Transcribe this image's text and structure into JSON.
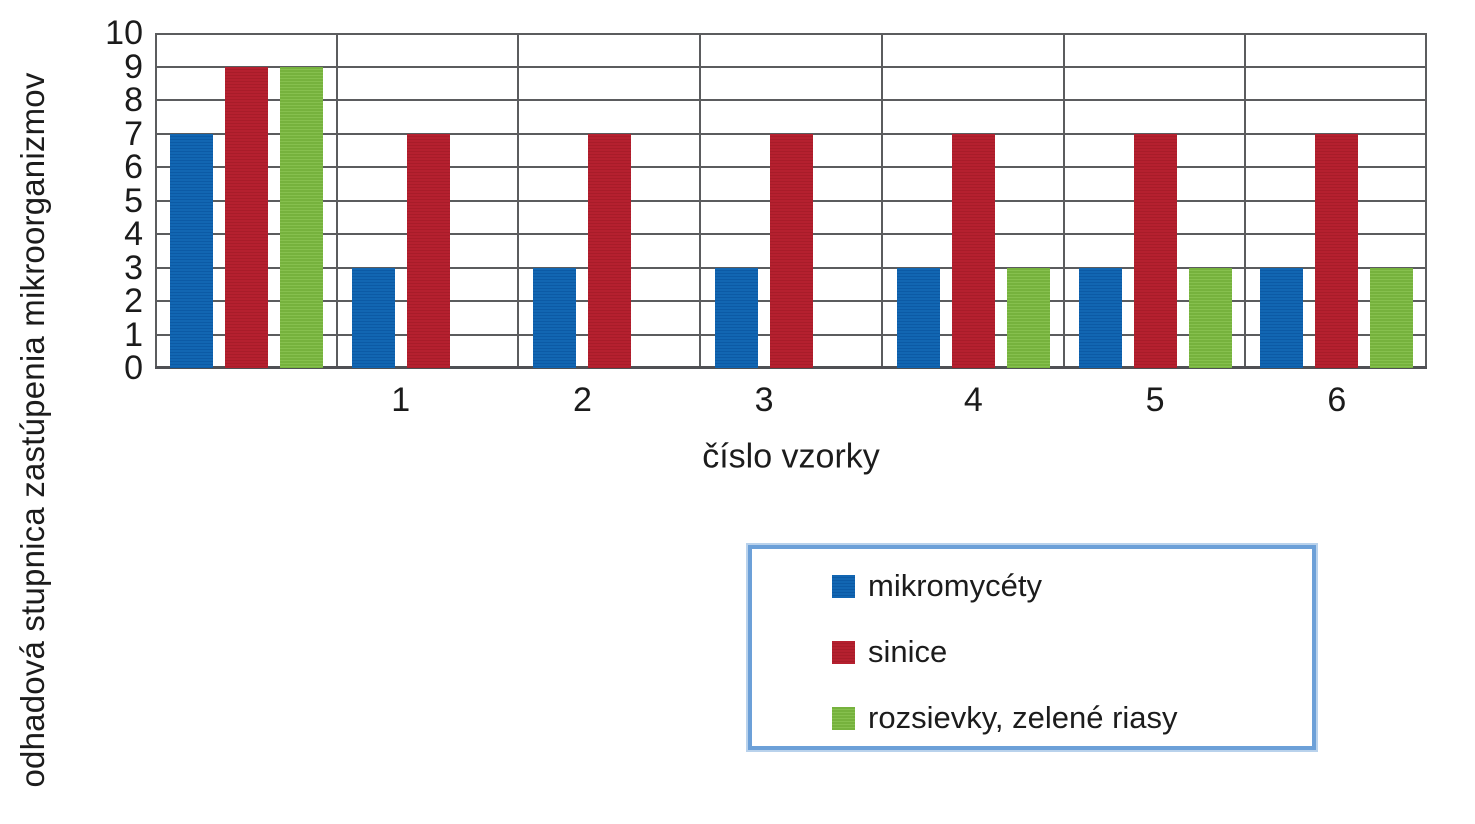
{
  "chart_data": {
    "type": "bar",
    "title": "",
    "xlabel": "číslo vzorky",
    "ylabel": "odhadová stupnica zastúpenia mikroorganizmov",
    "ylim": [
      0,
      10
    ],
    "yticks": [
      0,
      1,
      2,
      3,
      4,
      5,
      6,
      7,
      8,
      9,
      10
    ],
    "categories": [
      "",
      "1",
      "2",
      "3",
      "4",
      "5",
      "6"
    ],
    "series": [
      {
        "name": "mikromycéty",
        "values": [
          7,
          3,
          3,
          3,
          3,
          3,
          3
        ],
        "color": "#1266b2",
        "stripe_color": "#0c5aa5"
      },
      {
        "name": "sinice",
        "values": [
          9,
          7,
          7,
          7,
          7,
          7,
          7
        ],
        "color": "#b5202f",
        "stripe_color": "#a81c29"
      },
      {
        "name": "rozsievky, zelené riasy",
        "values": [
          9,
          null,
          null,
          null,
          3,
          3,
          3
        ],
        "color": "#76b23d",
        "stripe_color": "#86c04e"
      }
    ],
    "grid": true,
    "legend_position": "bottom-right",
    "gridline_color": "#5b5c5e",
    "legend_border_color": "#6ca0d8",
    "text_color": "#1c1c1c"
  }
}
